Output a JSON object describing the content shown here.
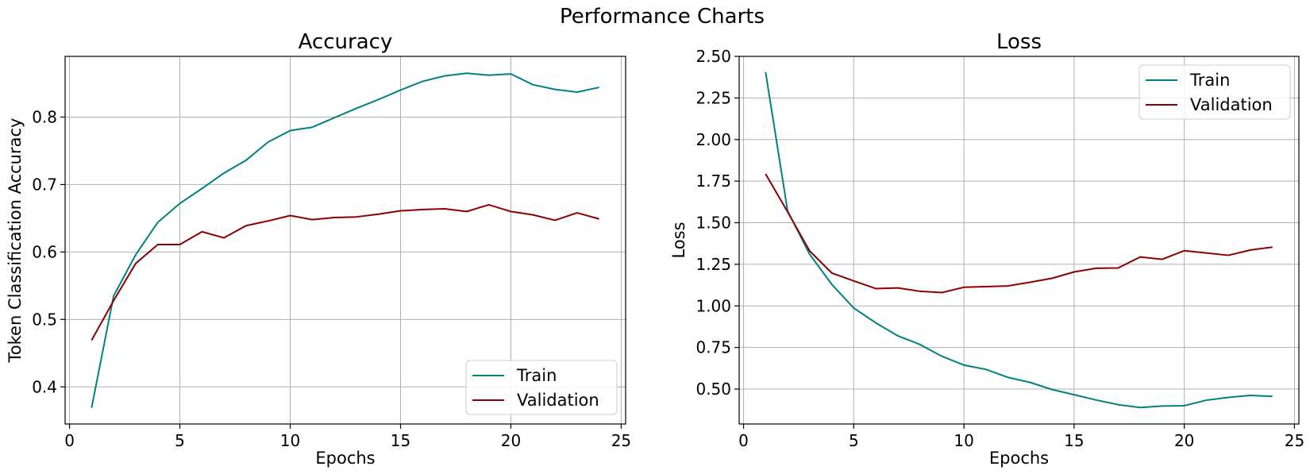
{
  "figure": {
    "title": "Performance Charts"
  },
  "chart_data": [
    {
      "type": "line",
      "title": "Accuracy",
      "xlabel": "Epochs",
      "ylabel": "Token Classification Accuracy",
      "xlim": [
        -0.2,
        25.2
      ],
      "ylim": [
        0.345,
        0.89
      ],
      "xticks": [
        0,
        5,
        10,
        15,
        20,
        25
      ],
      "yticks": [
        0.4,
        0.5,
        0.6,
        0.7,
        0.8
      ],
      "ytick_labels": [
        "0.4",
        "0.5",
        "0.6",
        "0.7",
        "0.8"
      ],
      "grid": true,
      "legend_position": "lower-right",
      "x": [
        1,
        2,
        3,
        4,
        5,
        6,
        7,
        8,
        9,
        10,
        11,
        12,
        13,
        14,
        15,
        16,
        17,
        18,
        19,
        20,
        21,
        22,
        23,
        24
      ],
      "series": [
        {
          "name": "Train",
          "color": "#008080",
          "values": [
            0.369,
            0.535,
            0.596,
            0.644,
            0.672,
            0.694,
            0.717,
            0.736,
            0.763,
            0.78,
            0.785,
            0.799,
            0.813,
            0.826,
            0.84,
            0.853,
            0.861,
            0.865,
            0.862,
            0.864,
            0.848,
            0.841,
            0.837,
            0.844
          ]
        },
        {
          "name": "Validation",
          "color": "#8b0000",
          "values": [
            0.469,
            0.528,
            0.583,
            0.611,
            0.611,
            0.63,
            0.621,
            0.639,
            0.646,
            0.654,
            0.648,
            0.651,
            0.652,
            0.656,
            0.661,
            0.663,
            0.664,
            0.66,
            0.67,
            0.66,
            0.655,
            0.647,
            0.658,
            0.649
          ]
        }
      ]
    },
    {
      "type": "line",
      "title": "Loss",
      "xlabel": "Epochs",
      "ylabel": "Loss",
      "xlim": [
        -0.2,
        25.2
      ],
      "ylim": [
        0.29,
        2.5
      ],
      "xticks": [
        0,
        5,
        10,
        15,
        20,
        25
      ],
      "yticks": [
        0.5,
        0.75,
        1.0,
        1.25,
        1.5,
        1.75,
        2.0,
        2.25,
        2.5
      ],
      "ytick_labels": [
        "0.50",
        "0.75",
        "1.00",
        "1.25",
        "1.50",
        "1.75",
        "2.00",
        "2.25",
        "2.50"
      ],
      "grid": true,
      "legend_position": "upper-right",
      "x": [
        1,
        2,
        3,
        4,
        5,
        6,
        7,
        8,
        9,
        10,
        11,
        12,
        13,
        14,
        15,
        16,
        17,
        18,
        19,
        20,
        21,
        22,
        23,
        24
      ],
      "series": [
        {
          "name": "Train",
          "color": "#008080",
          "values": [
            2.405,
            1.57,
            1.31,
            1.13,
            0.987,
            0.898,
            0.82,
            0.768,
            0.697,
            0.644,
            0.618,
            0.57,
            0.54,
            0.497,
            0.466,
            0.434,
            0.406,
            0.389,
            0.398,
            0.4,
            0.433,
            0.45,
            0.462,
            0.456
          ]
        },
        {
          "name": "Validation",
          "color": "#8b0000",
          "values": [
            1.793,
            1.565,
            1.33,
            1.198,
            1.15,
            1.104,
            1.108,
            1.088,
            1.08,
            1.112,
            1.116,
            1.12,
            1.142,
            1.166,
            1.204,
            1.226,
            1.228,
            1.294,
            1.28,
            1.332,
            1.318,
            1.304,
            1.336,
            1.353
          ]
        }
      ]
    }
  ]
}
